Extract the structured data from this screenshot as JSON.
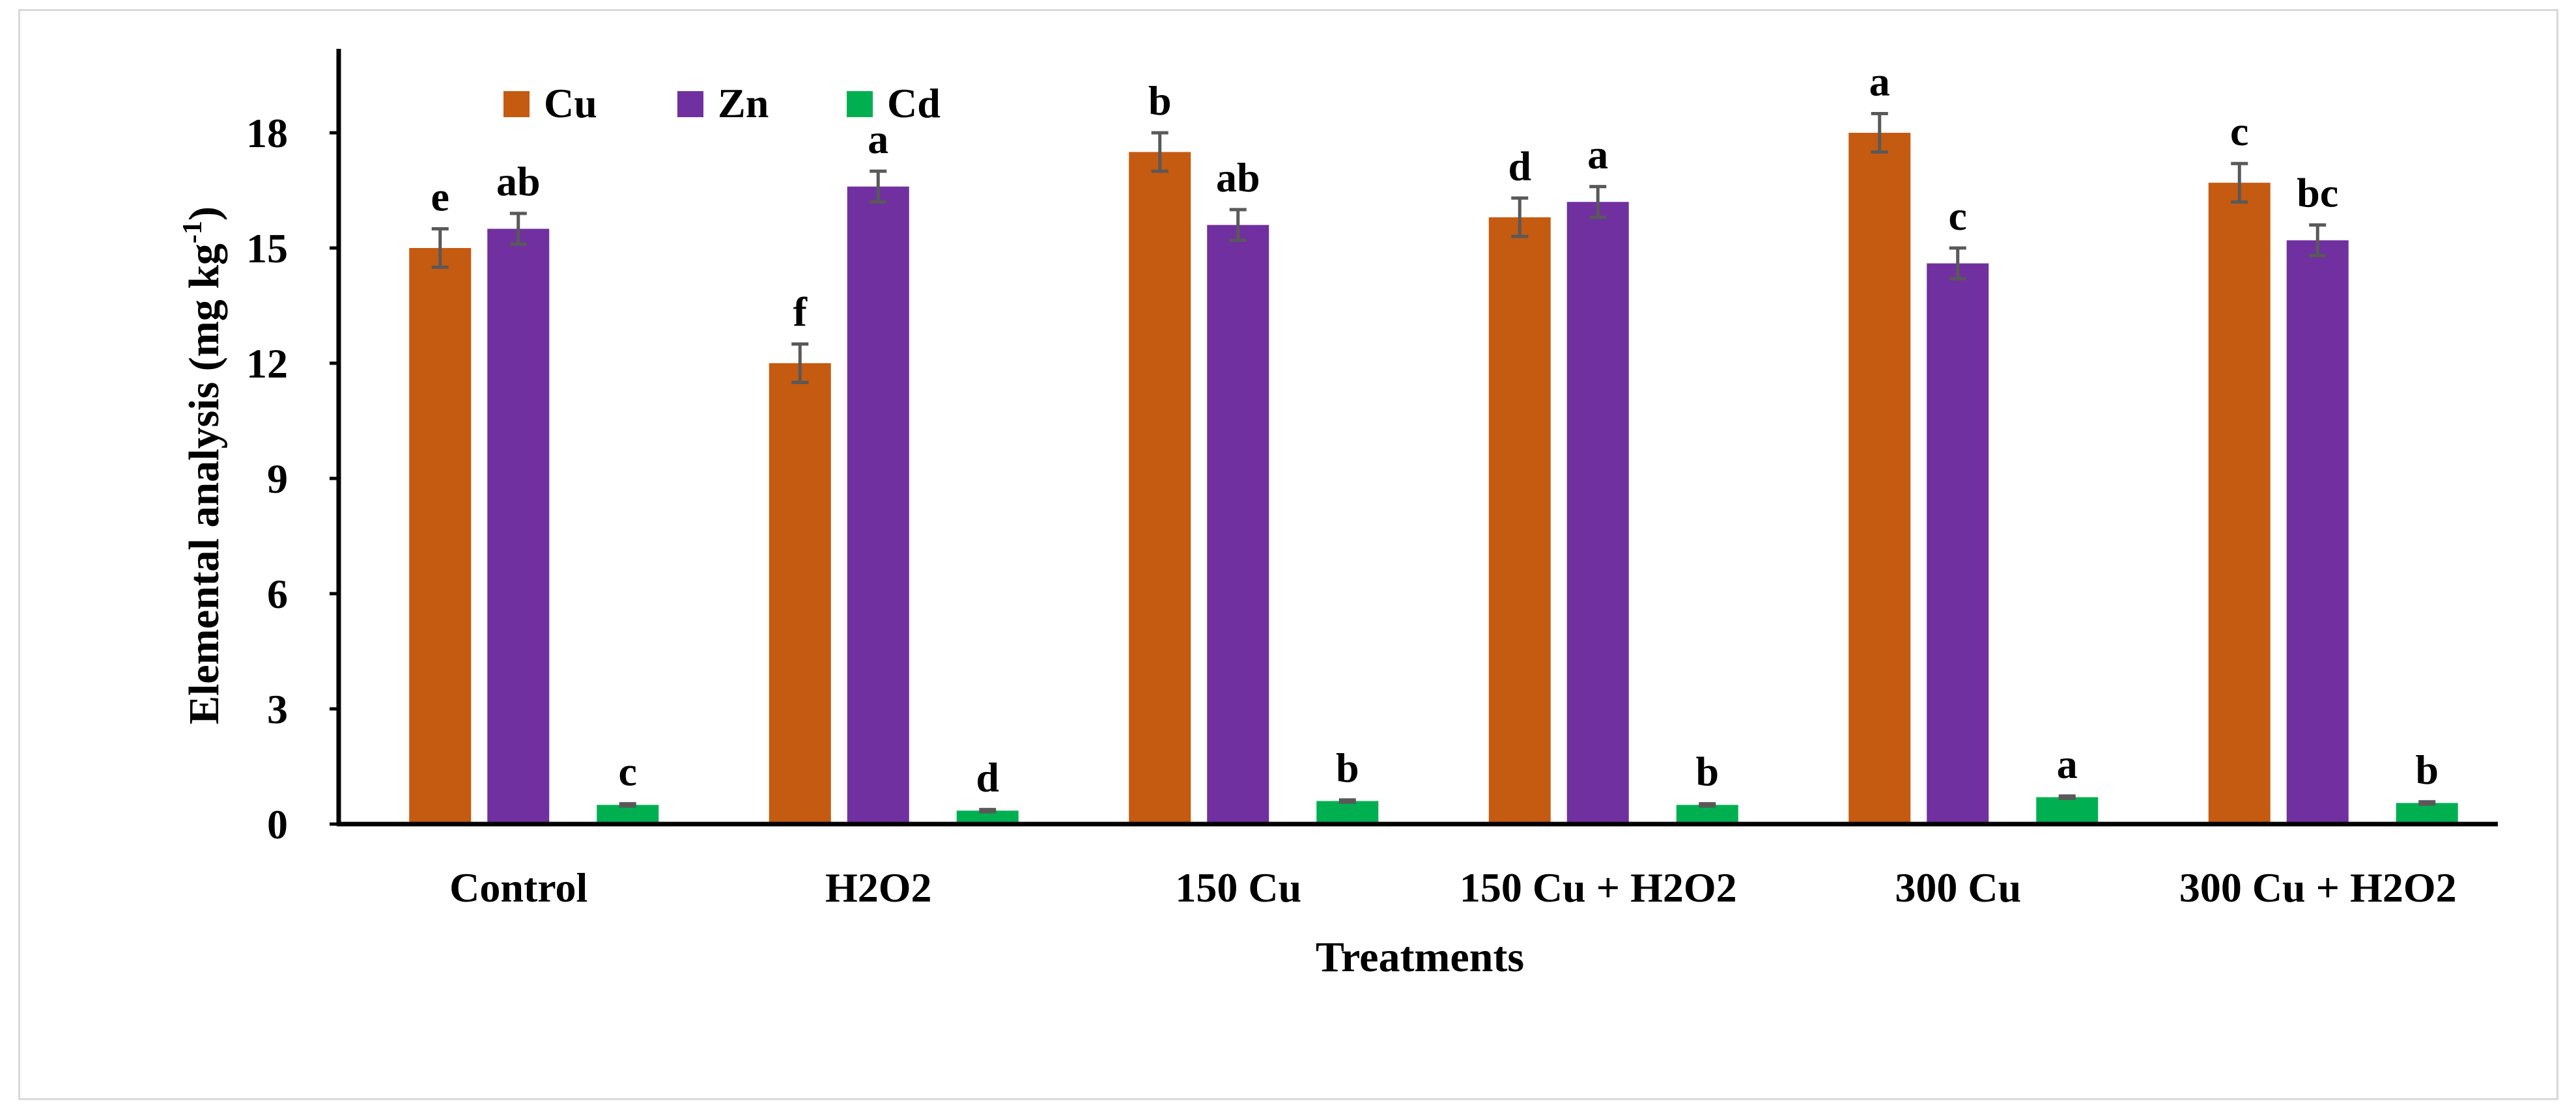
{
  "chart_data": {
    "type": "bar",
    "title": "",
    "xlabel": "Treatments",
    "ylabel": "Elemental analysis (mg kg",
    "ylabel_superscript": "-1",
    "ylabel_close": ")",
    "ylim": [
      0,
      20
    ],
    "yticks": [
      0,
      3,
      6,
      9,
      12,
      15,
      18
    ],
    "grid": false,
    "legend_position": "top-left",
    "categories": [
      "Control",
      "H2O2",
      "150 Cu",
      "150 Cu + H2O2",
      "300 Cu",
      "300 Cu + H2O2"
    ],
    "series": [
      {
        "name": "Cu",
        "color": "#C55A11",
        "values": [
          15.0,
          12.0,
          17.5,
          15.8,
          18.0,
          16.7
        ],
        "errors": [
          0.5,
          0.5,
          0.5,
          0.5,
          0.5,
          0.5
        ],
        "letters": [
          "e",
          "f",
          "b",
          "d",
          "a",
          "c"
        ]
      },
      {
        "name": "Zn",
        "color": "#7030A0",
        "values": [
          15.5,
          16.6,
          15.6,
          16.2,
          14.6,
          15.2
        ],
        "errors": [
          0.4,
          0.4,
          0.4,
          0.4,
          0.4,
          0.4
        ],
        "letters": [
          "ab",
          "a",
          "ab",
          "a",
          "c",
          "bc"
        ]
      },
      {
        "name": "Cd",
        "color": "#00B050",
        "values": [
          0.5,
          0.35,
          0.6,
          0.5,
          0.7,
          0.55
        ],
        "errors": [
          0.03,
          0.03,
          0.03,
          0.03,
          0.03,
          0.03
        ],
        "letters": [
          "c",
          "d",
          "b",
          "b",
          "a",
          "b"
        ]
      }
    ]
  },
  "colors": {
    "axis": "#000000",
    "error_bar": "#595959",
    "frame": "#d9d9d9"
  }
}
